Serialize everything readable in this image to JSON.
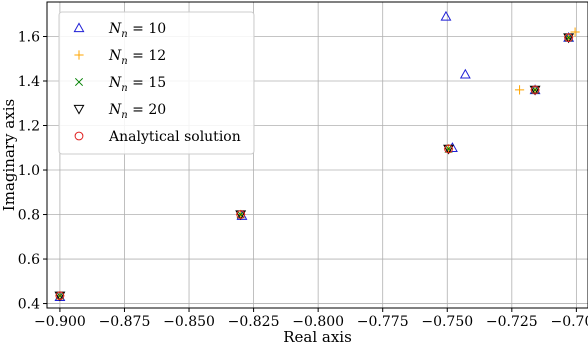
{
  "chart_data": {
    "type": "scatter",
    "xlabel": "Real axis",
    "ylabel": "Imaginary axis",
    "xlim": [
      -0.905,
      -0.6955
    ],
    "ylim": [
      0.38,
      1.755
    ],
    "grid": true,
    "legend_position": "upper-left",
    "xticks": [
      -0.9,
      -0.875,
      -0.85,
      -0.825,
      -0.8,
      -0.775,
      -0.75,
      -0.725,
      -0.7
    ],
    "xtick_labels": [
      "−0.900",
      "−0.875",
      "−0.850",
      "−0.825",
      "−0.800",
      "−0.775",
      "−0.750",
      "−0.725",
      "−0.700"
    ],
    "yticks": [
      0.4,
      0.6,
      0.8,
      1.0,
      1.2,
      1.4,
      1.6
    ],
    "ytick_labels": [
      "0.4",
      "0.6",
      "0.8",
      "1.0",
      "1.2",
      "1.4",
      "1.6"
    ],
    "series": [
      {
        "name": "N_n = 10",
        "label_main": "N",
        "label_sub": "n",
        "label_rest": " = 10",
        "marker": "triangle-up",
        "color": "#1f1fd6",
        "x": [
          -0.9,
          -0.8295,
          -0.748,
          -0.7505,
          -0.743,
          -0.716,
          -0.703
        ],
        "y": [
          0.43,
          0.795,
          1.1,
          1.69,
          1.43,
          1.36,
          1.595
        ]
      },
      {
        "name": "N_n = 12",
        "label_main": "N",
        "label_sub": "n",
        "label_rest": " = 12",
        "marker": "plus",
        "color": "#ffa500",
        "x": [
          -0.9,
          -0.83,
          -0.7495,
          -0.722,
          -0.716,
          -0.703,
          -0.7005
        ],
        "y": [
          0.435,
          0.8,
          1.095,
          1.36,
          1.36,
          1.595,
          1.62
        ]
      },
      {
        "name": "N_n = 15",
        "label_main": "N",
        "label_sub": "n",
        "label_rest": " = 15",
        "marker": "x",
        "color": "#008000",
        "x": [
          -0.9,
          -0.83,
          -0.7495,
          -0.716,
          -0.703
        ],
        "y": [
          0.435,
          0.8,
          1.095,
          1.36,
          1.595
        ]
      },
      {
        "name": "N_n = 20",
        "label_main": "N",
        "label_sub": "n",
        "label_rest": " = 20",
        "marker": "triangle-down",
        "color": "#000000",
        "x": [
          -0.9,
          -0.83,
          -0.7495,
          -0.716,
          -0.703
        ],
        "y": [
          0.435,
          0.8,
          1.095,
          1.36,
          1.595
        ]
      },
      {
        "name": "Analytical solution",
        "label_main": "Analytical solution",
        "label_sub": "",
        "label_rest": "",
        "marker": "circle",
        "color": "#e02020",
        "x": [
          -0.9,
          -0.83,
          -0.7495,
          -0.716,
          -0.703
        ],
        "y": [
          0.435,
          0.8,
          1.095,
          1.36,
          1.595
        ]
      }
    ]
  }
}
